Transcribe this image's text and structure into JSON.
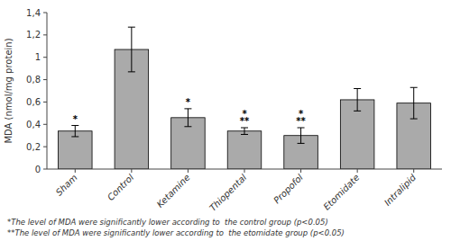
{
  "chart_data": {
    "type": "bar",
    "categories": [
      "Sham",
      "Control",
      "Ketamine",
      "Thiopental",
      "Propofol",
      "Etomidate",
      "Intralipid"
    ],
    "values": [
      0.34,
      1.07,
      0.46,
      0.34,
      0.3,
      0.62,
      0.59
    ],
    "errors": [
      0.05,
      0.2,
      0.08,
      0.03,
      0.07,
      0.1,
      0.14
    ],
    "color": "#aaaaaa",
    "ylabel": "MDA (nmol/mg protein)",
    "ylim": [
      0,
      1.4
    ],
    "yticks": [
      0,
      {
        "value": 0.2,
        "label": "0,2"
      },
      {
        "value": 0.4,
        "label": "0,4"
      },
      {
        "value": 0.6,
        "label": "0,6"
      },
      {
        "value": 0.8,
        "label": "0,8"
      },
      1,
      {
        "value": 1.2,
        "label": "1,2"
      },
      {
        "value": 1.4,
        "label": "1,4"
      }
    ],
    "grid": false,
    "annotations": [
      {
        "category": "Sham",
        "text": "*"
      },
      {
        "category": "Ketamine",
        "text": "*"
      },
      {
        "category": "Thiopental",
        "text": "**"
      },
      {
        "category": "Thiopental",
        "text": "*"
      },
      {
        "category": "Propofol",
        "text": "**"
      },
      {
        "category": "Propofol",
        "text": "*"
      }
    ],
    "footnotes": [
      "*The level of MDA were significantly lower according to  the control group (p<0.05)",
      "**The level of MDA were significantly lower according to  the etomidate group (p<0.05)"
    ]
  }
}
